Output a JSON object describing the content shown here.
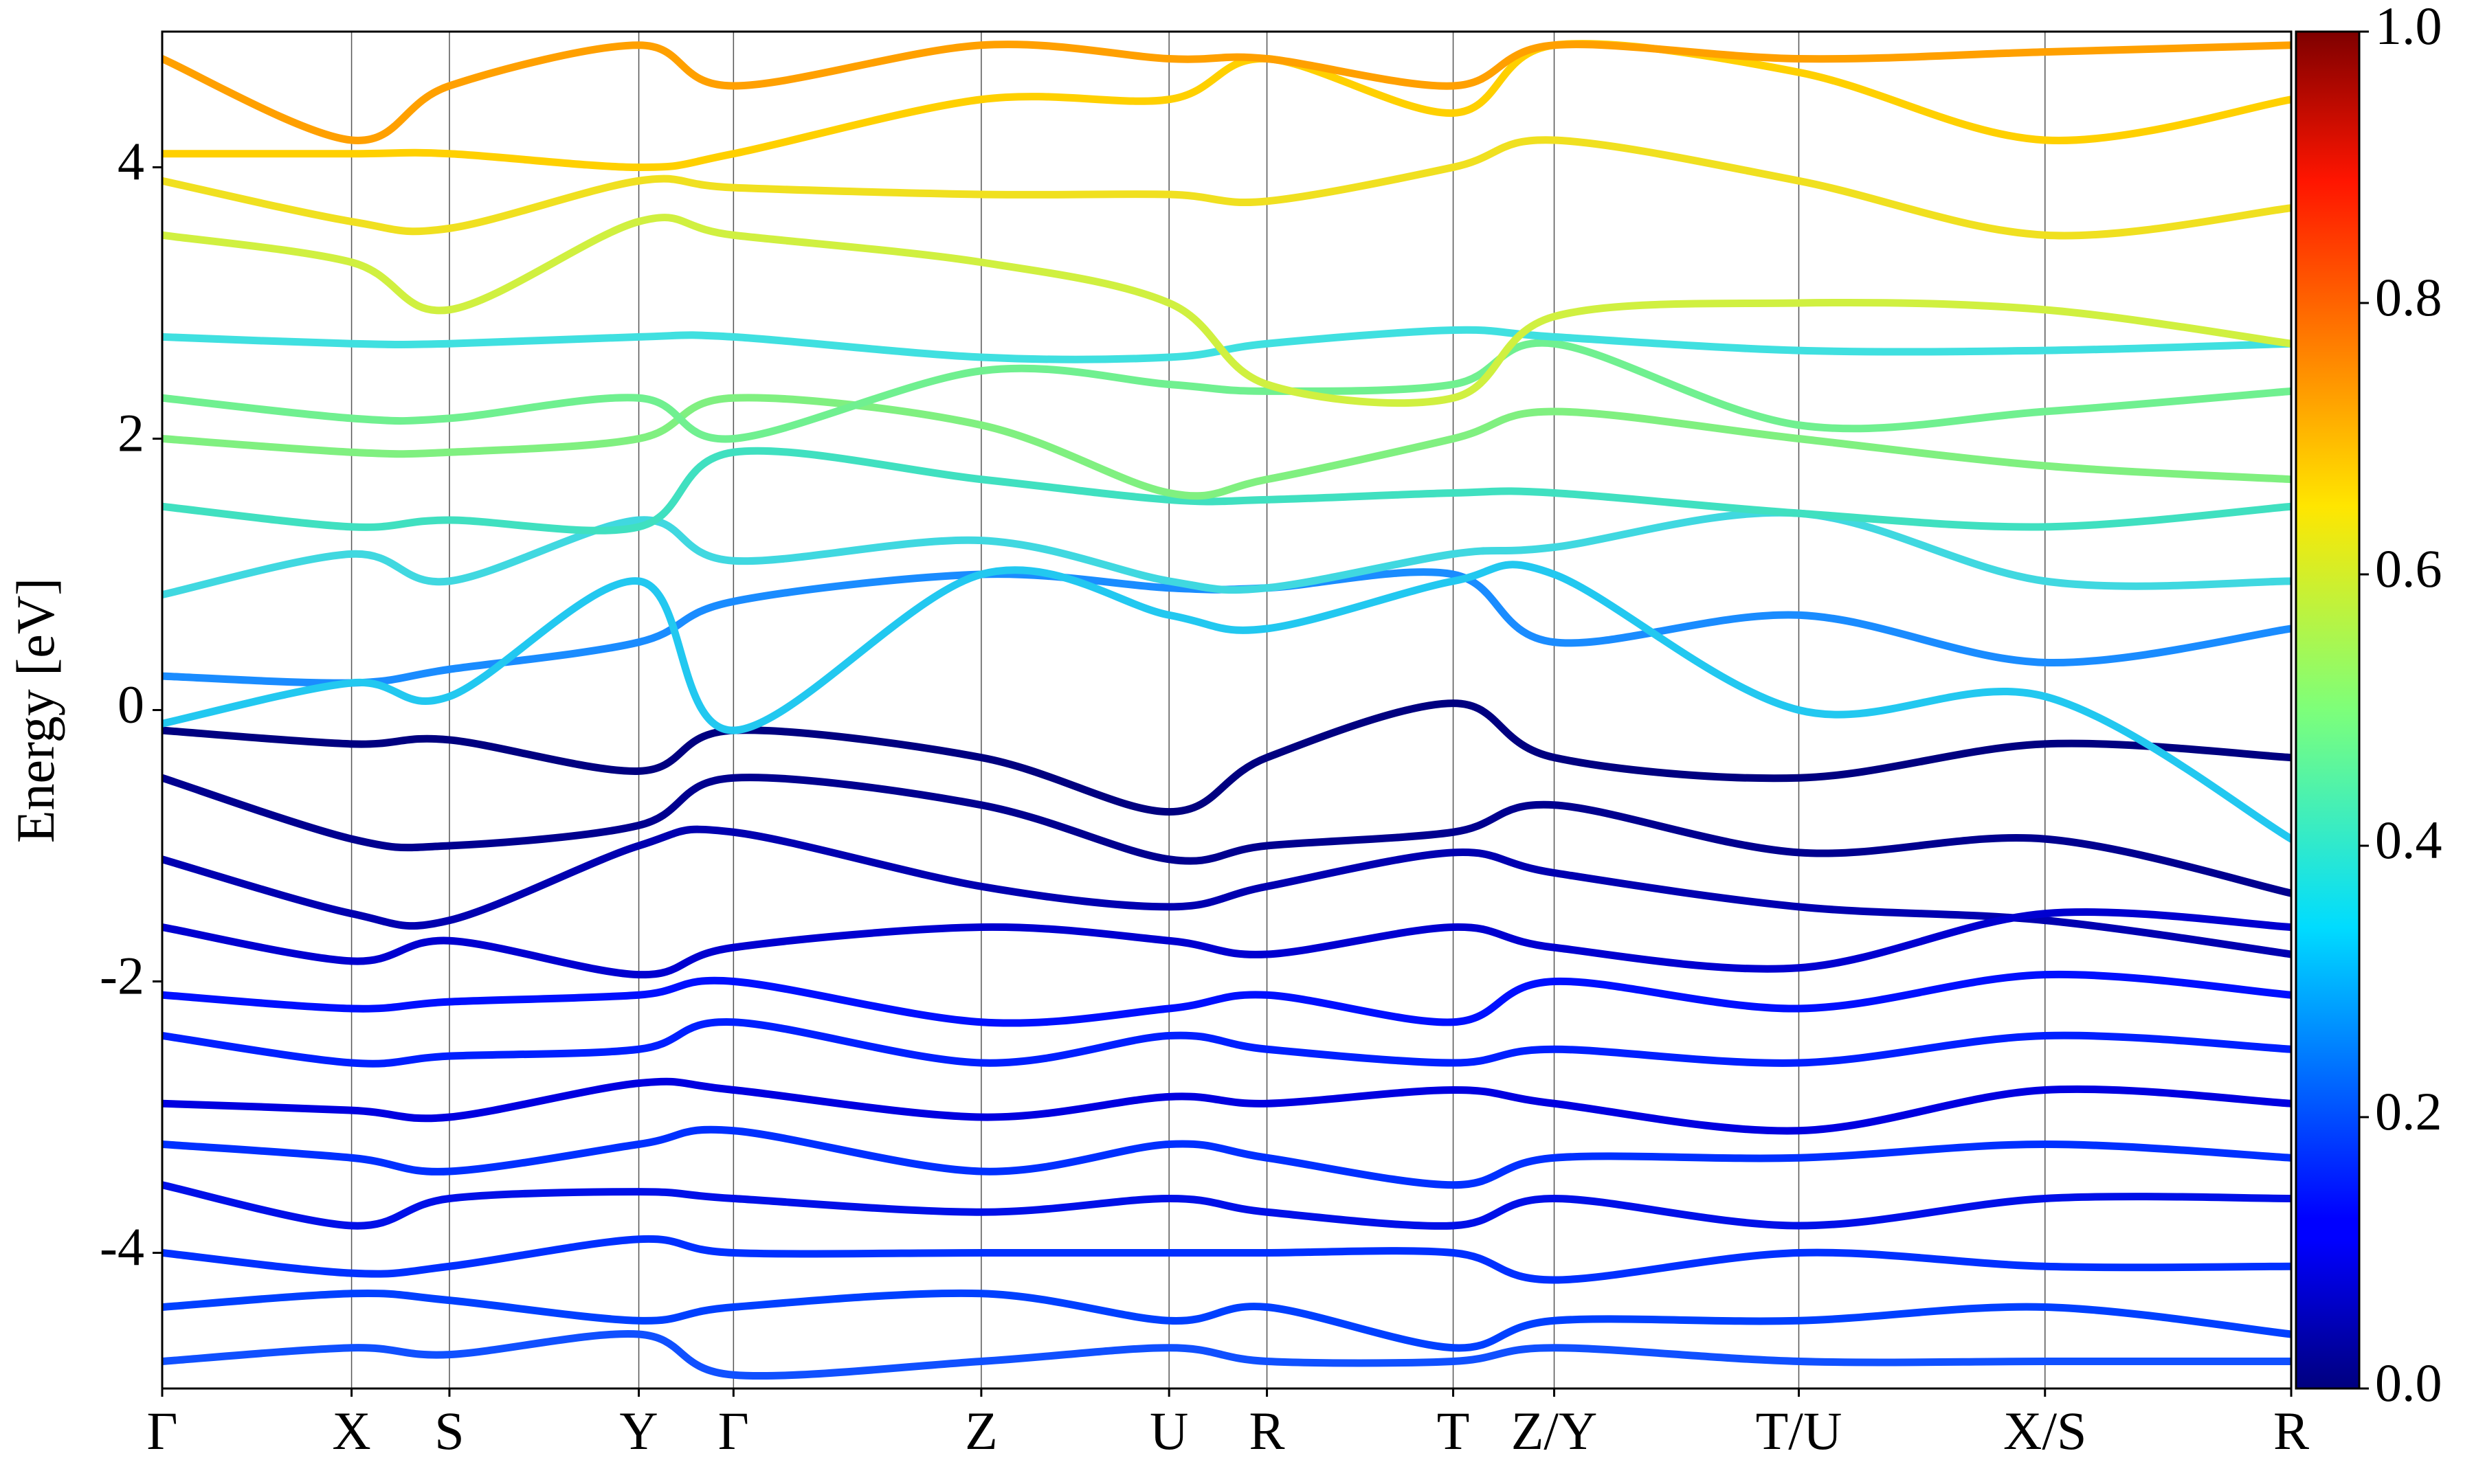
{
  "chart_data": {
    "type": "line",
    "ylabel": "Energy [eV]",
    "x": [
      0,
      1.2,
      1.82,
      3.02,
      3.62,
      5.19,
      6.38,
      7.0,
      8.18,
      8.82,
      10.37,
      11.93,
      13.49
    ],
    "xlim": [
      0,
      13.49
    ],
    "xticks": [
      {
        "value": 0,
        "label": "Γ"
      },
      {
        "value": 1.2,
        "label": "X"
      },
      {
        "value": 1.82,
        "label": "S"
      },
      {
        "value": 3.02,
        "label": "Y"
      },
      {
        "value": 3.62,
        "label": "Γ"
      },
      {
        "value": 5.19,
        "label": "Z"
      },
      {
        "value": 6.38,
        "label": "U"
      },
      {
        "value": 7.0,
        "label": "R"
      },
      {
        "value": 8.18,
        "label": "T"
      },
      {
        "value": 8.82,
        "label": "Z/Y"
      },
      {
        "value": 10.37,
        "label": "T/U"
      },
      {
        "value": 11.93,
        "label": "X/S"
      },
      {
        "value": 13.49,
        "label": "R"
      }
    ],
    "ylim": [
      -5,
      5
    ],
    "yticks": [
      -4,
      -2,
      0,
      2,
      4
    ],
    "vertical_grid": true,
    "colorbar": {
      "colormap": "jet",
      "clim": [
        0,
        1
      ],
      "ticks": [
        {
          "value": 0,
          "label": "0.0"
        },
        {
          "value": 0.2,
          "label": "0.2"
        },
        {
          "value": 0.4,
          "label": "0.4"
        },
        {
          "value": 0.6,
          "label": "0.6"
        },
        {
          "value": 0.8,
          "label": "0.8"
        },
        {
          "value": 1,
          "label": "1.0"
        }
      ]
    },
    "series": [
      {
        "color": "#000080",
        "values": [
          -0.15,
          -0.25,
          -0.22,
          -0.45,
          -0.15,
          -0.35,
          -0.75,
          -0.35,
          0.05,
          -0.35,
          -0.5,
          -0.25,
          -0.35
        ]
      },
      {
        "color": "#00008f",
        "values": [
          -0.5,
          -0.95,
          -1.0,
          -0.85,
          -0.5,
          -0.7,
          -1.1,
          -1.0,
          -0.9,
          -0.7,
          -1.05,
          -0.95,
          -1.35
        ]
      },
      {
        "color": "#0000b0",
        "values": [
          -1.1,
          -1.5,
          -1.55,
          -1.0,
          -0.9,
          -1.3,
          -1.45,
          -1.3,
          -1.05,
          -1.2,
          -1.45,
          -1.55,
          -1.8
        ]
      },
      {
        "color": "#0000d0",
        "values": [
          -1.6,
          -1.85,
          -1.7,
          -1.95,
          -1.75,
          -1.6,
          -1.7,
          -1.8,
          -1.6,
          -1.75,
          -1.9,
          -1.5,
          -1.6
        ]
      },
      {
        "color": "#0010ff",
        "values": [
          -2.1,
          -2.2,
          -2.15,
          -2.1,
          -2.0,
          -2.3,
          -2.2,
          -2.1,
          -2.3,
          -2.0,
          -2.2,
          -1.95,
          -2.1
        ]
      },
      {
        "color": "#0020ff",
        "values": [
          -2.4,
          -2.6,
          -2.55,
          -2.5,
          -2.3,
          -2.6,
          -2.4,
          -2.5,
          -2.6,
          -2.5,
          -2.6,
          -2.4,
          -2.5
        ]
      },
      {
        "color": "#0000e0",
        "values": [
          -2.9,
          -2.95,
          -3.0,
          -2.75,
          -2.8,
          -3.0,
          -2.85,
          -2.9,
          -2.8,
          -2.9,
          -3.1,
          -2.8,
          -2.9
        ]
      },
      {
        "color": "#0030ff",
        "values": [
          -3.2,
          -3.3,
          -3.4,
          -3.2,
          -3.1,
          -3.4,
          -3.2,
          -3.3,
          -3.5,
          -3.3,
          -3.3,
          -3.2,
          -3.3
        ]
      },
      {
        "color": "#0010e8",
        "values": [
          -3.5,
          -3.8,
          -3.6,
          -3.55,
          -3.6,
          -3.7,
          -3.6,
          -3.7,
          -3.8,
          -3.6,
          -3.8,
          -3.6,
          -3.6
        ]
      },
      {
        "color": "#0030ff",
        "values": [
          -4.0,
          -4.15,
          -4.1,
          -3.9,
          -4.0,
          -4.0,
          -4.0,
          -4.0,
          -4.0,
          -4.2,
          -4.0,
          -4.1,
          -4.1
        ]
      },
      {
        "color": "#0040ff",
        "values": [
          -4.4,
          -4.3,
          -4.35,
          -4.5,
          -4.4,
          -4.3,
          -4.5,
          -4.4,
          -4.7,
          -4.5,
          -4.5,
          -4.4,
          -4.6
        ]
      },
      {
        "color": "#1050ff",
        "values": [
          -4.8,
          -4.7,
          -4.75,
          -4.6,
          -4.9,
          -4.8,
          -4.7,
          -4.8,
          -4.8,
          -4.7,
          -4.8,
          -4.8,
          -4.8
        ]
      },
      {
        "color": "#1a8cff",
        "values": [
          0.25,
          0.2,
          0.3,
          0.5,
          0.8,
          1.0,
          0.9,
          0.9,
          1.0,
          0.5,
          0.7,
          0.35,
          0.6
        ]
      },
      {
        "color": "#22c8f0",
        "values": [
          -0.1,
          0.2,
          0.1,
          0.95,
          -0.15,
          1.0,
          0.7,
          0.6,
          0.95,
          1.0,
          0.0,
          0.1,
          -0.95
        ]
      },
      {
        "color": "#40d8e0",
        "values": [
          0.85,
          1.15,
          0.95,
          1.4,
          1.1,
          1.25,
          0.95,
          0.9,
          1.15,
          1.2,
          1.45,
          0.95,
          0.95
        ]
      },
      {
        "color": "#40e0c0",
        "values": [
          1.5,
          1.35,
          1.4,
          1.35,
          1.9,
          1.7,
          1.55,
          1.55,
          1.6,
          1.6,
          1.45,
          1.35,
          1.5
        ]
      },
      {
        "color": "#80f080",
        "values": [
          2.0,
          1.9,
          1.9,
          2.0,
          2.3,
          2.1,
          1.6,
          1.7,
          2.0,
          2.2,
          2.0,
          1.8,
          1.7
        ]
      },
      {
        "color": "#70f090",
        "values": [
          2.3,
          2.15,
          2.15,
          2.3,
          2.0,
          2.5,
          2.4,
          2.35,
          2.4,
          2.7,
          2.1,
          2.2,
          2.35
        ]
      },
      {
        "color": "#40e0e0",
        "values": [
          2.75,
          2.7,
          2.7,
          2.75,
          2.75,
          2.6,
          2.6,
          2.7,
          2.8,
          2.75,
          2.65,
          2.65,
          2.7
        ]
      },
      {
        "color": "#d0f040",
        "values": [
          3.5,
          3.3,
          2.95,
          3.6,
          3.5,
          3.3,
          3.0,
          2.4,
          2.3,
          2.9,
          3.0,
          2.95,
          2.7
        ]
      },
      {
        "color": "#f0e020",
        "values": [
          3.9,
          3.6,
          3.55,
          3.9,
          3.85,
          3.8,
          3.8,
          3.75,
          4.0,
          4.2,
          3.9,
          3.5,
          3.7
        ]
      },
      {
        "color": "#ffd000",
        "values": [
          4.1,
          4.1,
          4.1,
          4.0,
          4.1,
          4.5,
          4.5,
          4.8,
          4.4,
          4.9,
          4.7,
          4.2,
          4.5
        ]
      },
      {
        "color": "#ffa000",
        "values": [
          4.8,
          4.2,
          4.6,
          4.9,
          4.6,
          4.9,
          4.8,
          4.8,
          4.6,
          4.9,
          4.8,
          4.85,
          4.9
        ]
      }
    ]
  }
}
